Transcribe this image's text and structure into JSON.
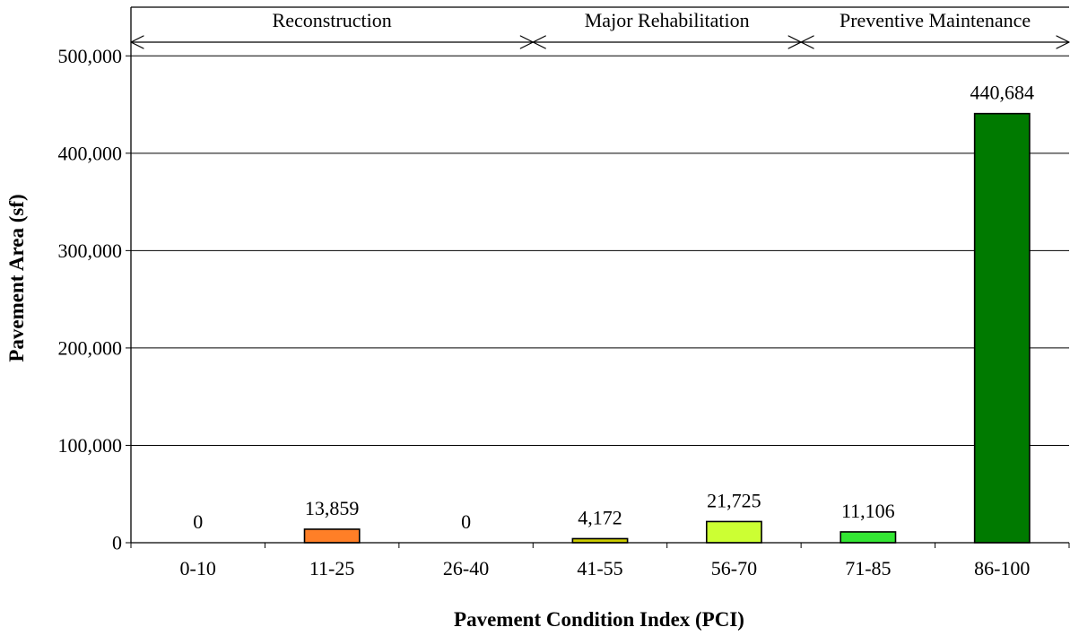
{
  "chart_data": {
    "type": "bar",
    "categories": [
      "0-10",
      "11-25",
      "26-40",
      "41-55",
      "56-70",
      "71-85",
      "86-100"
    ],
    "values": [
      0,
      13859,
      0,
      4172,
      21725,
      11106,
      440684
    ],
    "data_labels": [
      "0",
      "13,859",
      "0",
      "4,172",
      "21,725",
      "11,106",
      "440,684"
    ],
    "bar_colors": [
      null,
      "#FF7F27",
      null,
      "#CCCC00",
      "#CCFF33",
      "#33E633",
      "#007A00"
    ],
    "xlabel": "Pavement Condition Index (PCI)",
    "ylabel": "Pavement Area (sf)",
    "ylim": [
      0,
      550000
    ],
    "yticks": [
      0,
      100000,
      200000,
      300000,
      400000,
      500000
    ],
    "ytick_labels": [
      "0",
      "100,000",
      "200,000",
      "300,000",
      "400,000",
      "500,000"
    ],
    "grid": true,
    "regions": [
      {
        "label": "Reconstruction",
        "start_category": "0-10",
        "end_category": "26-40"
      },
      {
        "label": "Major Rehabilitation",
        "start_category": "41-55",
        "end_category": "56-70"
      },
      {
        "label": "Preventive Maintenance",
        "start_category": "71-85",
        "end_category": "86-100"
      }
    ],
    "colors": {
      "background": "#FFFFFF",
      "axis": "#000000",
      "gridline": "#000000",
      "bar_outline": "#000000"
    }
  }
}
